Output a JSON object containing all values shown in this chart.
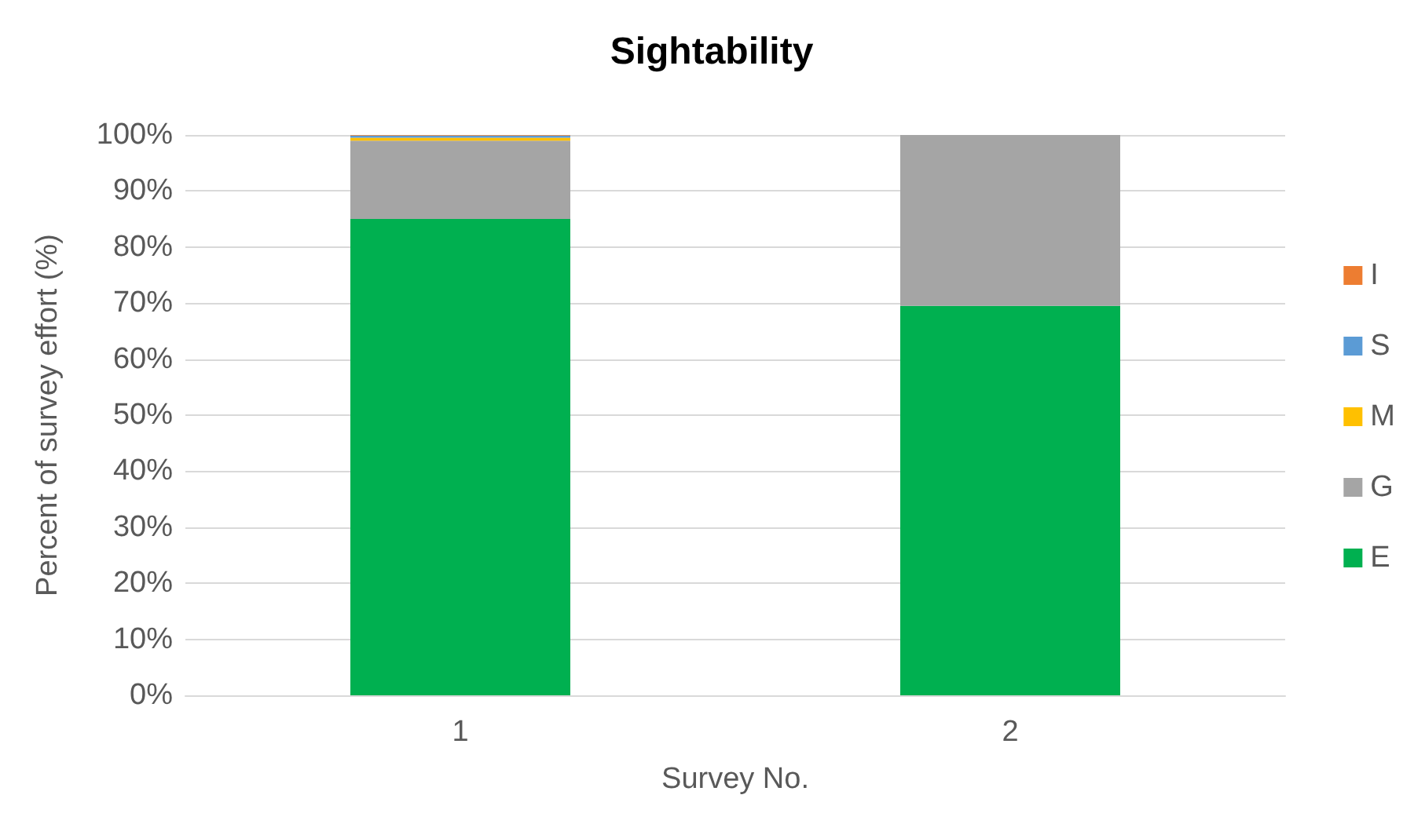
{
  "chart_data": {
    "type": "bar",
    "title": "Sightability",
    "xlabel": "Survey No.",
    "ylabel": "Percent of survey effort (%)",
    "categories": [
      "1",
      "2"
    ],
    "stacked": true,
    "series": [
      {
        "name": "E",
        "color": "#00b050",
        "values": [
          85,
          69.5
        ]
      },
      {
        "name": "G",
        "color": "#a5a5a5",
        "values": [
          14,
          30.5
        ]
      },
      {
        "name": "M",
        "color": "#ffc000",
        "values": [
          0.5,
          0
        ]
      },
      {
        "name": "S",
        "color": "#5b9bd5",
        "values": [
          0.4,
          0
        ]
      },
      {
        "name": "I",
        "color": "#ed7d31",
        "values": [
          0.1,
          0
        ]
      }
    ],
    "ylim": [
      0,
      100
    ],
    "yticks": [
      {
        "value": 0,
        "label": "0%"
      },
      {
        "value": 10,
        "label": "10%"
      },
      {
        "value": 20,
        "label": "20%"
      },
      {
        "value": 30,
        "label": "30%"
      },
      {
        "value": 40,
        "label": "40%"
      },
      {
        "value": 50,
        "label": "50%"
      },
      {
        "value": 60,
        "label": "60%"
      },
      {
        "value": 70,
        "label": "70%"
      },
      {
        "value": 80,
        "label": "80%"
      },
      {
        "value": 90,
        "label": "90%"
      },
      {
        "value": 100,
        "label": "100%"
      }
    ],
    "grid": "y",
    "legend": "right"
  }
}
